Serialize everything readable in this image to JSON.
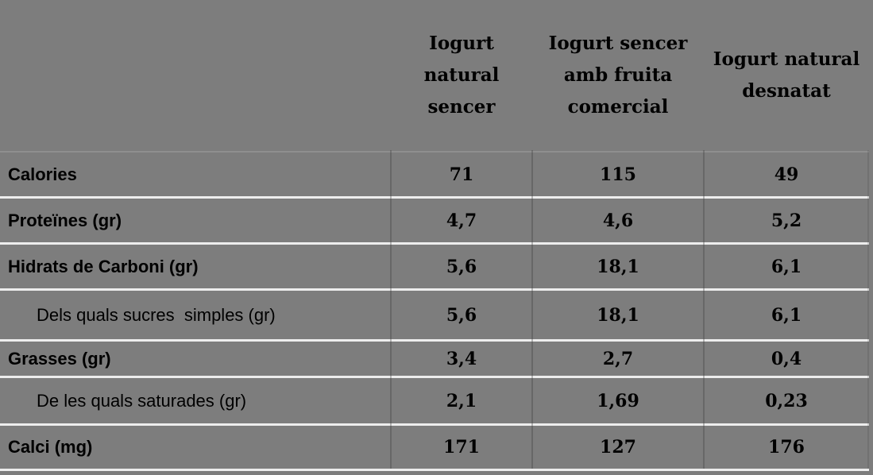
{
  "colors": {
    "background": "#7d7d7d",
    "row_separator": "#ededed",
    "header_separator": "#8f8f8f",
    "column_divider": "#3c3c3c",
    "text": "#000000"
  },
  "table": {
    "columns": [
      {
        "label": "Iogurt natural sencer",
        "lines": [
          "Iogurt",
          "natural",
          "sencer"
        ]
      },
      {
        "label": "Iogurt sencer amb fruita comercial",
        "lines": [
          "Iogurt sencer",
          "amb fruita",
          "comercial"
        ]
      },
      {
        "label": "Iogurt natural desnatat",
        "lines": [
          "Iogurt natural",
          "desnatat"
        ]
      }
    ],
    "rows": [
      {
        "label": "Calories",
        "values": [
          "71",
          "115",
          "49"
        ]
      },
      {
        "label": "Proteïnes (gr)",
        "values": [
          "4,7",
          "4,6",
          "5,2"
        ]
      },
      {
        "label": "Hidrats de Carboni (gr)",
        "values": [
          "5,6",
          "18,1",
          "6,1"
        ]
      },
      {
        "label": "Dels quals sucres  simples (gr)",
        "values": [
          "5,6",
          "18,1",
          "6,1"
        ]
      },
      {
        "label": "Grasses (gr)",
        "values": [
          "3,4",
          "2,7",
          "0,4"
        ]
      },
      {
        "label": "De les quals saturades (gr)",
        "values": [
          "2,1",
          "1,69",
          "0,23"
        ]
      },
      {
        "label": "Calci (mg)",
        "values": [
          "171",
          "127",
          "176"
        ]
      }
    ]
  },
  "chart_data": {
    "type": "table",
    "title": "",
    "columns": [
      "",
      "Iogurt natural sencer",
      "Iogurt sencer amb fruita comercial",
      "Iogurt natural desnatat"
    ],
    "rows": [
      [
        "Calories",
        71,
        115,
        49
      ],
      [
        "Proteïnes (gr)",
        4.7,
        4.6,
        5.2
      ],
      [
        "Hidrats de Carboni (gr)",
        5.6,
        18.1,
        6.1
      ],
      [
        "Dels quals sucres simples (gr)",
        5.6,
        18.1,
        6.1
      ],
      [
        "Grasses (gr)",
        3.4,
        2.7,
        0.4
      ],
      [
        "De les quals saturades (gr)",
        2.1,
        1.69,
        0.23
      ],
      [
        "Calci (mg)",
        171,
        127,
        176
      ]
    ]
  }
}
